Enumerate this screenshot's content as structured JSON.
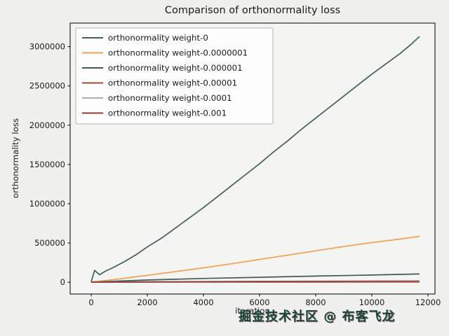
{
  "figure": {
    "title": "Comparison of orthonormality loss",
    "xlabel": "iteration",
    "ylabel": "orthonormality loss"
  },
  "watermark": {
    "text": "掘金技术社区 @ 布客飞龙"
  },
  "colors": {
    "spine": "#000000",
    "axes_bg": "#f4f4f2",
    "legend_bg": "rgba(255,255,255,0.8)",
    "legend_border": "#b3b3b3"
  },
  "chart_data": {
    "type": "line",
    "title": "Comparison of orthonormality loss",
    "xlabel": "iteration",
    "ylabel": "orthonormality loss",
    "xlim": [
      -750,
      12250
    ],
    "ylim": [
      -150000,
      3300000
    ],
    "x_ticks": [
      0,
      2000,
      4000,
      6000,
      8000,
      10000,
      12000
    ],
    "y_ticks": [
      0,
      500000,
      1000000,
      1500000,
      2000000,
      2500000,
      3000000
    ],
    "grid": false,
    "legend_position": "upper left",
    "series": [
      {
        "name": "orthonormality weight-0",
        "color": "#43605b",
        "points": [
          [
            0,
            5000
          ],
          [
            120,
            150000
          ],
          [
            300,
            95000
          ],
          [
            500,
            140000
          ],
          [
            800,
            190000
          ],
          [
            1200,
            265000
          ],
          [
            1600,
            350000
          ],
          [
            2000,
            450000
          ],
          [
            2500,
            560000
          ],
          [
            3000,
            690000
          ],
          [
            3500,
            820000
          ],
          [
            4000,
            950000
          ],
          [
            4500,
            1090000
          ],
          [
            5000,
            1230000
          ],
          [
            5500,
            1370000
          ],
          [
            6000,
            1510000
          ],
          [
            6500,
            1660000
          ],
          [
            7000,
            1800000
          ],
          [
            7500,
            1950000
          ],
          [
            8000,
            2090000
          ],
          [
            8500,
            2230000
          ],
          [
            9000,
            2370000
          ],
          [
            9500,
            2510000
          ],
          [
            10000,
            2650000
          ],
          [
            10500,
            2780000
          ],
          [
            11000,
            2910000
          ],
          [
            11400,
            3030000
          ],
          [
            11700,
            3130000
          ]
        ]
      },
      {
        "name": "orthonormality weight-0.0000001",
        "color": "#efa155",
        "points": [
          [
            0,
            2000
          ],
          [
            500,
            20000
          ],
          [
            1000,
            42000
          ],
          [
            2000,
            88000
          ],
          [
            3000,
            135000
          ],
          [
            4000,
            183000
          ],
          [
            5000,
            235000
          ],
          [
            6000,
            290000
          ],
          [
            7000,
            345000
          ],
          [
            8000,
            400000
          ],
          [
            9000,
            455000
          ],
          [
            10000,
            505000
          ],
          [
            11000,
            550000
          ],
          [
            11700,
            585000
          ]
        ]
      },
      {
        "name": "orthonormality weight-0.000001",
        "color": "#3f5b57",
        "points": [
          [
            0,
            1000
          ],
          [
            1000,
            15000
          ],
          [
            2000,
            28000
          ],
          [
            4000,
            48000
          ],
          [
            6000,
            63000
          ],
          [
            8000,
            78000
          ],
          [
            10000,
            92000
          ],
          [
            11700,
            105000
          ]
        ]
      },
      {
        "name": "orthonormality weight-0.00001",
        "color": "#9d4b42",
        "points": [
          [
            0,
            500
          ],
          [
            2000,
            6000
          ],
          [
            4000,
            9000
          ],
          [
            6000,
            11000
          ],
          [
            8000,
            13000
          ],
          [
            10000,
            15000
          ],
          [
            11700,
            16000
          ]
        ]
      },
      {
        "name": "orthonormality weight-0.0001",
        "color": "#a3b1ac",
        "points": [
          [
            0,
            500
          ],
          [
            2000,
            3000
          ],
          [
            4000,
            4500
          ],
          [
            6000,
            5000
          ],
          [
            8000,
            5500
          ],
          [
            10000,
            6000
          ],
          [
            11700,
            6500
          ]
        ]
      },
      {
        "name": "orthonormality weight-0.001",
        "color": "#8e3d39",
        "points": [
          [
            0,
            500
          ],
          [
            2000,
            1500
          ],
          [
            4000,
            2000
          ],
          [
            6000,
            2500
          ],
          [
            8000,
            2500
          ],
          [
            10000,
            3000
          ],
          [
            11700,
            3000
          ]
        ]
      }
    ]
  }
}
